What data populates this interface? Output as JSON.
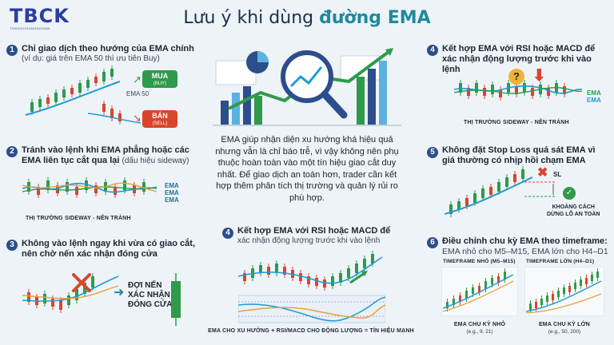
{
  "logo": {
    "name": "TBCK",
    "tagline": "TODOUCHUNGKHOAN"
  },
  "title": {
    "prefix": "Lưu ý khi dùng ",
    "highlight": "đường EMA"
  },
  "colors": {
    "navy": "#2d4e8c",
    "teal": "#1e8a9a",
    "green": "#2e9a4a",
    "red": "#d9452b",
    "ema": "#1f9ad6"
  },
  "tip1": {
    "num": "1",
    "heading": "Chỉ giao dịch theo hướng của EMA chính",
    "note": "(ví dụ: giá trên EMA 50 thì ưu tiên Buy)",
    "ema_label": "EMA 50",
    "buy": "MUA",
    "buy_sub": "(BUY)",
    "sell": "BÁN",
    "sell_sub": "(SELL)"
  },
  "tip2": {
    "num": "2",
    "heading": "Tránh vào lệnh khi EMA phẳng hoặc các EMA liên tục cắt qua lại",
    "note": "(dấu hiệu sideway)",
    "ema_labels": [
      "EMA",
      "EMA",
      "EMA"
    ],
    "caption": "THỊ TRƯỜNG SIDEWAY - NÊN TRÁNH"
  },
  "tip3": {
    "num": "3",
    "heading": "Không vào lệnh ngay khi vừa có giao cắt, nên chờ nến xác nhận đóng cửa",
    "wait_lines": [
      "ĐỢI NẾN",
      "XÁC NHẬN",
      "ĐÓNG CỬA"
    ]
  },
  "center": {
    "text": "EMA giúp nhận diện xu hướng khá hiệu quả nhưng vẫn là chỉ báo trễ, vì vậy không nên phụ thuộc hoàn toàn vào một tín hiệu giao cắt duy nhất. Để giao dịch an toàn hơn, trader cần kết hợp thêm phân tích thị trường và quản lý rủi ro phù hợp."
  },
  "tip4b": {
    "num": "4",
    "heading": "Kết hợp EMA với RSI hoặc MACD để",
    "note": "xác nhận động lượng trước khi vào lệnh",
    "caption": "EMA CHO XU HƯỚNG + RSI/MACD CHO ĐỘNG LƯỢNG = TÍN HIỆU MẠNH"
  },
  "tip4": {
    "num": "4",
    "heading_lines": [
      "Kết hợp EMA với RSI hoặc MACD để",
      "xác nhận động lượng trước khi vào lệnh"
    ],
    "ema_labels": [
      "EMA",
      "EMA"
    ],
    "caption": "THỊ TRƯỜNG SIDEWAY - NÊN TRÁNH"
  },
  "tip5": {
    "num": "5",
    "heading_lines": [
      "Không đặt Stop Loss quá sát EMA vì",
      "giá thường có nhịp hồi chạm EMA"
    ],
    "sl": "SL",
    "safe_lines": [
      "KHOẢNG CÁCH",
      "DỪNG LỖ AN TOÀN"
    ]
  },
  "tip6": {
    "num": "6",
    "heading": "Điều chỉnh chu kỳ EMA theo timeframe:",
    "sub_lines": [
      "EMA nhỏ cho M5–M15, EMA lớn cho H4–D1"
    ],
    "left_title": "TIMEFRAME NHỎ (M5–M15)",
    "right_title": "TIMEFRAME LỚN (H4–D1)",
    "left_caption": "EMA CHU KỲ NHỎ",
    "left_example": "(e.g., 9, 21)",
    "right_caption": "EMA CHU KỲ LỚN",
    "right_example": "(e.g., 50, 200)"
  },
  "chart_data": [
    {
      "type": "line",
      "series": [
        {
          "values": [
            10,
            12,
            11,
            14,
            16,
            15,
            18,
            20,
            19,
            22
          ]
        }
      ],
      "title": ""
    },
    {
      "type": "line",
      "series": [
        {
          "values": [
            15,
            17,
            14,
            16,
            15,
            17,
            14,
            16,
            15,
            17
          ]
        }
      ],
      "title": ""
    },
    {
      "type": "line",
      "series": [
        {
          "values": [
            14,
            12,
            13,
            11,
            12,
            15,
            18,
            21,
            24,
            26
          ]
        }
      ],
      "title": ""
    }
  ]
}
